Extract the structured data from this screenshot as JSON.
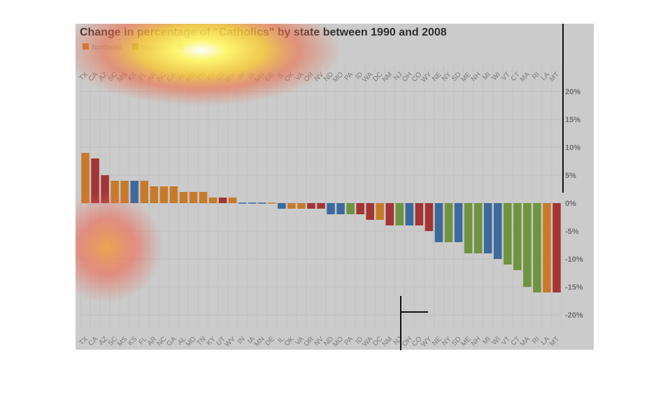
{
  "chart_data": {
    "type": "bar",
    "title": "Change in percentage of \"Catholics\" by state between 1990 and 2008",
    "legend": [
      {
        "name": "Northeast",
        "color": "#c77a2a"
      },
      {
        "name": "Midwest",
        "color": "#6f9440"
      },
      {
        "name": "South",
        "color": "#a33535"
      }
    ],
    "region_colors": {
      "Northeast": "#c77a2a",
      "Midwest": "#6f9440",
      "South": "#a33535",
      "West": "#3d6a9c"
    },
    "categories": [
      "TX",
      "CA",
      "AZ",
      "SC",
      "MS",
      "KS",
      "FL",
      "AR",
      "NC",
      "GA",
      "AL",
      "MD",
      "TN",
      "KY",
      "UT",
      "WV",
      "IN",
      "IA",
      "MN",
      "DE",
      "IL",
      "OK",
      "VA",
      "OR",
      "NV",
      "ND",
      "MO",
      "PA",
      "ID",
      "WA",
      "DC",
      "NM",
      "NJ",
      "OH",
      "CO",
      "WY",
      "NE",
      "NY",
      "SD",
      "ME",
      "NH",
      "MI",
      "WI",
      "VT",
      "CT",
      "MA",
      "RI",
      "LA",
      "MT"
    ],
    "values": [
      9,
      8,
      5,
      4,
      4,
      4,
      4,
      3,
      3,
      3,
      2,
      2,
      2,
      1,
      1,
      1,
      0,
      0,
      0,
      0,
      -1,
      -1,
      -1,
      -1,
      -1,
      -2,
      -2,
      -2,
      -2,
      -3,
      -3,
      -4,
      -4,
      -4,
      -4,
      -5,
      -7,
      -7,
      -7,
      -9,
      -9,
      -9,
      -10,
      -11,
      -12,
      -15,
      -16,
      -16,
      -16
    ],
    "colors": [
      "#c77a2a",
      "#a33535",
      "#a33535",
      "#c77a2a",
      "#c77a2a",
      "#3d6a9c",
      "#c77a2a",
      "#c77a2a",
      "#c77a2a",
      "#c77a2a",
      "#c77a2a",
      "#c77a2a",
      "#c77a2a",
      "#c77a2a",
      "#a33535",
      "#c77a2a",
      "#3d6a9c",
      "#3d6a9c",
      "#3d6a9c",
      "#c77a2a",
      "#3d6a9c",
      "#c77a2a",
      "#c77a2a",
      "#a33535",
      "#a33535",
      "#3d6a9c",
      "#3d6a9c",
      "#6f9440",
      "#a33535",
      "#a33535",
      "#c77a2a",
      "#a33535",
      "#6f9440",
      "#3d6a9c",
      "#a33535",
      "#a33535",
      "#3d6a9c",
      "#6f9440",
      "#3d6a9c",
      "#6f9440",
      "#6f9440",
      "#3d6a9c",
      "#3d6a9c",
      "#6f9440",
      "#6f9440",
      "#6f9440",
      "#6f9440",
      "#c77a2a",
      "#a33535"
    ],
    "ylim": [
      -25,
      25
    ],
    "yticks": [
      20,
      15,
      10,
      5,
      0,
      -5,
      -10,
      -15,
      -20
    ],
    "ytick_labels": [
      "20%",
      "15%",
      "10%",
      "5%",
      "0%",
      "-5%",
      "-10%",
      "-15%",
      "-20%"
    ],
    "xlabel": "",
    "ylabel": "",
    "grid": true,
    "legend_position": "top-left"
  },
  "overlay": {
    "heatmap_blobs": true
  }
}
